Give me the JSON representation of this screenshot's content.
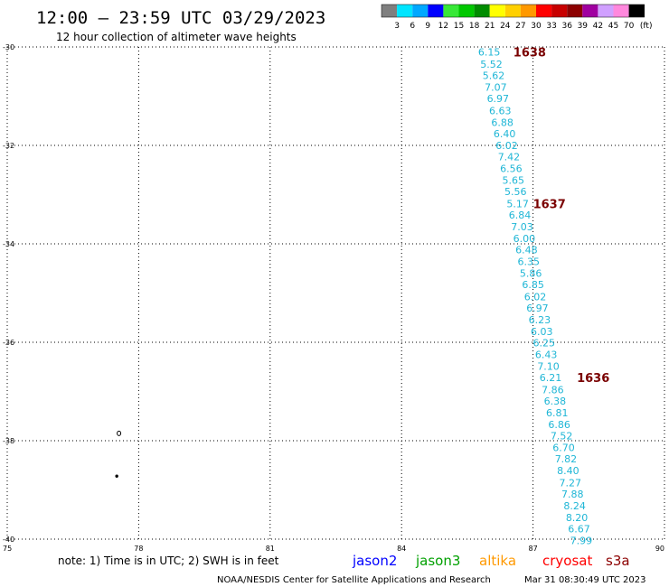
{
  "title": "12:00 – 23:59 UTC 03/29/2023",
  "subtitle": "12 hour collection of altimeter wave heights",
  "color_scale": {
    "labels": [
      "3",
      "6",
      "9",
      "12",
      "15",
      "18",
      "21",
      "24",
      "27",
      "30",
      "33",
      "36",
      "39",
      "42",
      "45",
      "70"
    ],
    "unit": "(ft)",
    "colors": [
      "#7f7f7f",
      "#00e5ff",
      "#00a8ff",
      "#0000ff",
      "#38e838",
      "#00c800",
      "#008c00",
      "#ffff00",
      "#ffd000",
      "#ff9900",
      "#ff0000",
      "#c80000",
      "#8c0000",
      "#a000a0",
      "#d0a0ff",
      "#ff88dd",
      "#000000"
    ]
  },
  "chart_data": {
    "type": "scatter",
    "title": "12:00 – 23:59 UTC 03/29/2023",
    "subtitle": "12 hour collection of altimeter wave heights",
    "xlim": [
      75,
      90
    ],
    "ylim": [
      -40,
      -30
    ],
    "x_ticks": [
      "75",
      "78",
      "81",
      "84",
      "87",
      "90"
    ],
    "y_ticks": [
      "-30",
      "-32",
      "-34",
      "-36",
      "-38",
      "-40"
    ],
    "grid": true,
    "wave_height_labels": [
      {
        "lon": 86.0,
        "lat": -30.1,
        "text": "6.15"
      },
      {
        "lon": 86.05,
        "lat": -30.35,
        "text": "5.52"
      },
      {
        "lon": 86.1,
        "lat": -30.58,
        "text": "5.62"
      },
      {
        "lon": 86.15,
        "lat": -30.82,
        "text": "7.07"
      },
      {
        "lon": 86.2,
        "lat": -31.05,
        "text": "6.97"
      },
      {
        "lon": 86.25,
        "lat": -31.29,
        "text": "6.63"
      },
      {
        "lon": 86.3,
        "lat": -31.53,
        "text": "6.88"
      },
      {
        "lon": 86.35,
        "lat": -31.76,
        "text": "6.40"
      },
      {
        "lon": 86.4,
        "lat": -32.0,
        "text": "6.02"
      },
      {
        "lon": 86.45,
        "lat": -32.23,
        "text": "7.42"
      },
      {
        "lon": 86.5,
        "lat": -32.47,
        "text": "6.56"
      },
      {
        "lon": 86.55,
        "lat": -32.71,
        "text": "5.65"
      },
      {
        "lon": 86.6,
        "lat": -32.94,
        "text": "5.56"
      },
      {
        "lon": 86.65,
        "lat": -33.18,
        "text": "5.17"
      },
      {
        "lon": 86.7,
        "lat": -33.41,
        "text": "6.84"
      },
      {
        "lon": 86.75,
        "lat": -33.65,
        "text": "7.03"
      },
      {
        "lon": 86.8,
        "lat": -33.89,
        "text": "6.00"
      },
      {
        "lon": 86.85,
        "lat": -34.12,
        "text": "6.48"
      },
      {
        "lon": 86.9,
        "lat": -34.36,
        "text": "6.35"
      },
      {
        "lon": 86.95,
        "lat": -34.6,
        "text": "5.86"
      },
      {
        "lon": 87.0,
        "lat": -34.83,
        "text": "6.85"
      },
      {
        "lon": 87.05,
        "lat": -35.07,
        "text": "6.02"
      },
      {
        "lon": 87.1,
        "lat": -35.3,
        "text": "6.97"
      },
      {
        "lon": 87.15,
        "lat": -35.54,
        "text": "6.23"
      },
      {
        "lon": 87.2,
        "lat": -35.78,
        "text": "6.03"
      },
      {
        "lon": 87.25,
        "lat": -36.01,
        "text": "6.25"
      },
      {
        "lon": 87.3,
        "lat": -36.25,
        "text": "6.43"
      },
      {
        "lon": 87.35,
        "lat": -36.49,
        "text": "7.10"
      },
      {
        "lon": 87.4,
        "lat": -36.72,
        "text": "6.21"
      },
      {
        "lon": 87.45,
        "lat": -36.96,
        "text": "7.86"
      },
      {
        "lon": 87.5,
        "lat": -37.19,
        "text": "6.38"
      },
      {
        "lon": 87.55,
        "lat": -37.43,
        "text": "6.81"
      },
      {
        "lon": 87.6,
        "lat": -37.67,
        "text": "6.86"
      },
      {
        "lon": 87.65,
        "lat": -37.9,
        "text": "7.52"
      },
      {
        "lon": 87.7,
        "lat": -38.14,
        "text": "6.70"
      },
      {
        "lon": 87.75,
        "lat": -38.37,
        "text": "7.82"
      },
      {
        "lon": 87.8,
        "lat": -38.61,
        "text": "8.40"
      },
      {
        "lon": 87.85,
        "lat": -38.85,
        "text": "7.27"
      },
      {
        "lon": 87.9,
        "lat": -39.08,
        "text": "7.88"
      },
      {
        "lon": 87.95,
        "lat": -39.32,
        "text": "8.24"
      },
      {
        "lon": 88.0,
        "lat": -39.56,
        "text": "8.20"
      },
      {
        "lon": 88.05,
        "lat": -39.79,
        "text": "6.67"
      },
      {
        "lon": 88.1,
        "lat": -40.03,
        "text": "7.99"
      }
    ],
    "pass_time_labels": [
      {
        "lon": 86.55,
        "lat": -30.1,
        "text": "1638"
      },
      {
        "lon": 87.0,
        "lat": -33.18,
        "text": "1637"
      },
      {
        "lon": 88.0,
        "lat": -36.72,
        "text": "1636"
      }
    ],
    "land_features": [
      {
        "lon": 77.55,
        "lat": -37.85
      },
      {
        "lon": 77.5,
        "lat": -38.72
      }
    ]
  },
  "note": "note:  1) Time is in UTC;  2) SWH is in feet",
  "satellites": [
    {
      "name": "jason2",
      "color": "#0000ff"
    },
    {
      "name": "jason3",
      "color": "#00a000"
    },
    {
      "name": "altika",
      "color": "#ff9900"
    },
    {
      "name": "cryosat",
      "color": "#ff0000"
    },
    {
      "name": "s3a",
      "color": "#8c0000"
    }
  ],
  "footer": {
    "credit": "NOAA/NESDIS Center for Satellite Applications and Research",
    "timestamp": "Mar 31 08:30:49 UTC 2023"
  }
}
